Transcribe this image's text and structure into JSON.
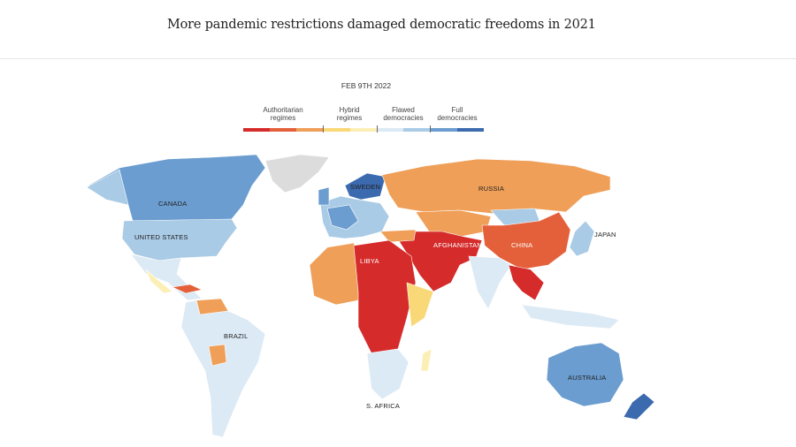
{
  "title": "More pandemic restrictions damaged democratic freedoms in 2021",
  "date": "FEB 9TH 2022",
  "legend": {
    "categories": [
      {
        "label_line1": "Authoritarian",
        "label_line2": "regimes",
        "colors": [
          "#d52b2b",
          "#e4603a",
          "#ef9f58"
        ]
      },
      {
        "label_line1": "Hybrid",
        "label_line2": "regimes",
        "colors": [
          "#f8d877",
          "#fcefb6"
        ]
      },
      {
        "label_line1": "Flawed",
        "label_line2": "democracies",
        "colors": [
          "#dceaf5",
          "#a9cbe6"
        ]
      },
      {
        "label_line1": "Full",
        "label_line2": "democracies",
        "colors": [
          "#6b9dd0",
          "#3c6aaf"
        ]
      }
    ]
  },
  "colors": {
    "auth1": "#d52b2b",
    "auth2": "#e4603a",
    "auth3": "#ef9f58",
    "hyb1": "#f8d877",
    "hyb2": "#fcefb6",
    "flaw1": "#dceaf5",
    "flaw2": "#a9cbe6",
    "full1": "#6b9dd0",
    "full2": "#3c6aaf",
    "nodata": "#dcdcdc"
  },
  "country_labels": {
    "canada": "CANADA",
    "united_states": "UNITED STATES",
    "brazil": "BRAZIL",
    "libya": "LIBYA",
    "sweden": "SWEDEN",
    "russia": "RUSSIA",
    "afghanistan": "AFGHANISTAN",
    "china": "CHINA",
    "japan": "JAPAN",
    "australia": "AUSTRALIA",
    "s_africa": "S. AFRICA"
  }
}
